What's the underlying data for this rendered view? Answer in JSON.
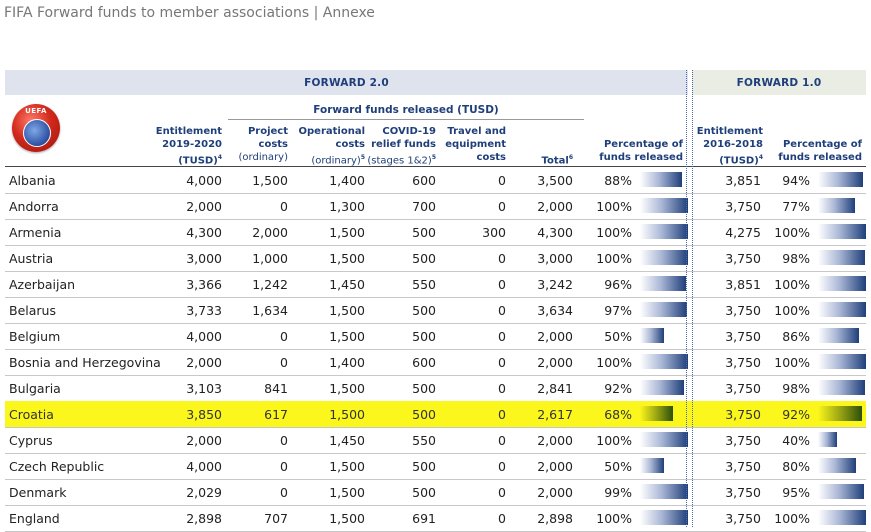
{
  "page_title": "FIFA Forward funds to member associations | Annexe",
  "bands": {
    "forward2": "FORWARD 2.0",
    "forward1": "FORWARD 1.0"
  },
  "subheader": "Forward funds released (TUSD)",
  "logo_text": "UEFA",
  "columns": {
    "entitlement_2019": [
      "Entitlement",
      "2019-2020",
      "(TUSD)",
      "4"
    ],
    "project": [
      "Project",
      "costs",
      "(ordinary)"
    ],
    "operational": [
      "Operational",
      "costs",
      "(ordinary)",
      "5"
    ],
    "covid": [
      "COVID-19",
      "relief funds",
      "(stages 1&2)",
      "5"
    ],
    "travel": [
      "Travel and",
      "equipment",
      "costs"
    ],
    "total": [
      "Total",
      "6"
    ],
    "pct_2": [
      "Percentage of",
      "funds released"
    ],
    "entitlement_2016": [
      "Entitlement",
      "2016-2018",
      "(TUSD)",
      "4"
    ],
    "pct_1": [
      "Percentage of",
      "funds released"
    ]
  },
  "colors": {
    "header_text": "#1f3f7a",
    "band_forward2": "#dfe3ee",
    "band_forward1": "#e9ede3",
    "highlight": "#fbf61b",
    "bar_dark": "#1f3f7a",
    "bar_highlight_dark": "#2d4f09"
  },
  "rows": [
    {
      "name": "Albania",
      "ent": "4,000",
      "proj": "1,500",
      "op": "1,400",
      "covid": "600",
      "travel": "0",
      "total": "3,500",
      "pct": "88%",
      "pct_value": 88,
      "ent1": "3,851",
      "pct1": "94%",
      "pct1_value": 94,
      "highlight": false
    },
    {
      "name": "Andorra",
      "ent": "2,000",
      "proj": "0",
      "op": "1,300",
      "covid": "700",
      "travel": "0",
      "total": "2,000",
      "pct": "100%",
      "pct_value": 100,
      "ent1": "3,750",
      "pct1": "77%",
      "pct1_value": 77,
      "highlight": false
    },
    {
      "name": "Armenia",
      "ent": "4,300",
      "proj": "2,000",
      "op": "1,500",
      "covid": "500",
      "travel": "300",
      "total": "4,300",
      "pct": "100%",
      "pct_value": 100,
      "ent1": "4,275",
      "pct1": "100%",
      "pct1_value": 100,
      "highlight": false
    },
    {
      "name": "Austria",
      "ent": "3,000",
      "proj": "1,000",
      "op": "1,500",
      "covid": "500",
      "travel": "0",
      "total": "3,000",
      "pct": "100%",
      "pct_value": 100,
      "ent1": "3,750",
      "pct1": "98%",
      "pct1_value": 98,
      "highlight": false
    },
    {
      "name": "Azerbaijan",
      "ent": "3,366",
      "proj": "1,242",
      "op": "1,450",
      "covid": "550",
      "travel": "0",
      "total": "3,242",
      "pct": "96%",
      "pct_value": 96,
      "ent1": "3,851",
      "pct1": "100%",
      "pct1_value": 100,
      "highlight": false
    },
    {
      "name": "Belarus",
      "ent": "3,733",
      "proj": "1,634",
      "op": "1,500",
      "covid": "500",
      "travel": "0",
      "total": "3,634",
      "pct": "97%",
      "pct_value": 97,
      "ent1": "3,750",
      "pct1": "100%",
      "pct1_value": 100,
      "highlight": false
    },
    {
      "name": "Belgium",
      "ent": "4,000",
      "proj": "0",
      "op": "1,500",
      "covid": "500",
      "travel": "0",
      "total": "2,000",
      "pct": "50%",
      "pct_value": 50,
      "ent1": "3,750",
      "pct1": "86%",
      "pct1_value": 86,
      "highlight": false
    },
    {
      "name": "Bosnia and Herzegovina",
      "ent": "2,000",
      "proj": "0",
      "op": "1,400",
      "covid": "600",
      "travel": "0",
      "total": "2,000",
      "pct": "100%",
      "pct_value": 100,
      "ent1": "3,750",
      "pct1": "100%",
      "pct1_value": 100,
      "highlight": false
    },
    {
      "name": "Bulgaria",
      "ent": "3,103",
      "proj": "841",
      "op": "1,500",
      "covid": "500",
      "travel": "0",
      "total": "2,841",
      "pct": "92%",
      "pct_value": 92,
      "ent1": "3,750",
      "pct1": "98%",
      "pct1_value": 98,
      "highlight": false
    },
    {
      "name": "Croatia",
      "ent": "3,850",
      "proj": "617",
      "op": "1,500",
      "covid": "500",
      "travel": "0",
      "total": "2,617",
      "pct": "68%",
      "pct_value": 68,
      "ent1": "3,750",
      "pct1": "92%",
      "pct1_value": 92,
      "highlight": true
    },
    {
      "name": "Cyprus",
      "ent": "2,000",
      "proj": "0",
      "op": "1,450",
      "covid": "550",
      "travel": "0",
      "total": "2,000",
      "pct": "100%",
      "pct_value": 100,
      "ent1": "3,750",
      "pct1": "40%",
      "pct1_value": 40,
      "highlight": false
    },
    {
      "name": "Czech Republic",
      "ent": "4,000",
      "proj": "0",
      "op": "1,500",
      "covid": "500",
      "travel": "0",
      "total": "2,000",
      "pct": "50%",
      "pct_value": 50,
      "ent1": "3,750",
      "pct1": "80%",
      "pct1_value": 80,
      "highlight": false
    },
    {
      "name": "Denmark",
      "ent": "2,029",
      "proj": "0",
      "op": "1,500",
      "covid": "500",
      "travel": "0",
      "total": "2,000",
      "pct": "99%",
      "pct_value": 99,
      "ent1": "3,750",
      "pct1": "95%",
      "pct1_value": 95,
      "highlight": false
    },
    {
      "name": "England",
      "ent": "2,898",
      "proj": "707",
      "op": "1,500",
      "covid": "691",
      "travel": "0",
      "total": "2,898",
      "pct": "100%",
      "pct_value": 100,
      "ent1": "3,750",
      "pct1": "100%",
      "pct1_value": 100,
      "highlight": false
    }
  ]
}
